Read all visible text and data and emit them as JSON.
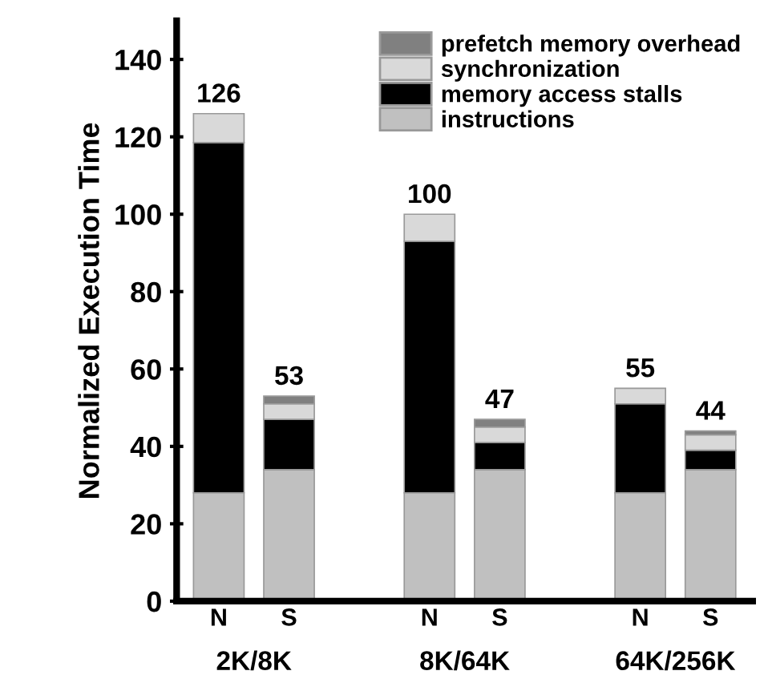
{
  "chart_data": {
    "type": "bar",
    "stacked": true,
    "ylabel": "Normalized Execution Time",
    "categories": [
      "N",
      "S",
      null,
      "N",
      "S",
      null,
      "N",
      "S"
    ],
    "series": [
      {
        "name": "instructions",
        "color": "#c0c0c0",
        "values": [
          28,
          34,
          null,
          28,
          34,
          null,
          28,
          34
        ]
      },
      {
        "name": "memory access stalls",
        "color": "#000000",
        "values": [
          90.5,
          13,
          null,
          65,
          7,
          null,
          23,
          5
        ]
      },
      {
        "name": "synchronization",
        "color": "#d9d9d9",
        "values": [
          7.5,
          4,
          null,
          7,
          4,
          null,
          4,
          4
        ]
      },
      {
        "name": "prefetch memory overhead",
        "color": "#808080",
        "values": [
          null,
          2,
          null,
          null,
          2,
          null,
          null,
          1
        ]
      }
    ],
    "totals": [
      "126",
      "53",
      null,
      "100",
      "47",
      null,
      "55",
      "44"
    ],
    "annotations": [
      "2K/8K",
      "8K/64K",
      "64K/256K"
    ],
    "ylim": [
      0,
      150
    ],
    "yticks": [
      0,
      20,
      40,
      60,
      80,
      100,
      120,
      140
    ],
    "grid": false,
    "legend": "top right"
  }
}
